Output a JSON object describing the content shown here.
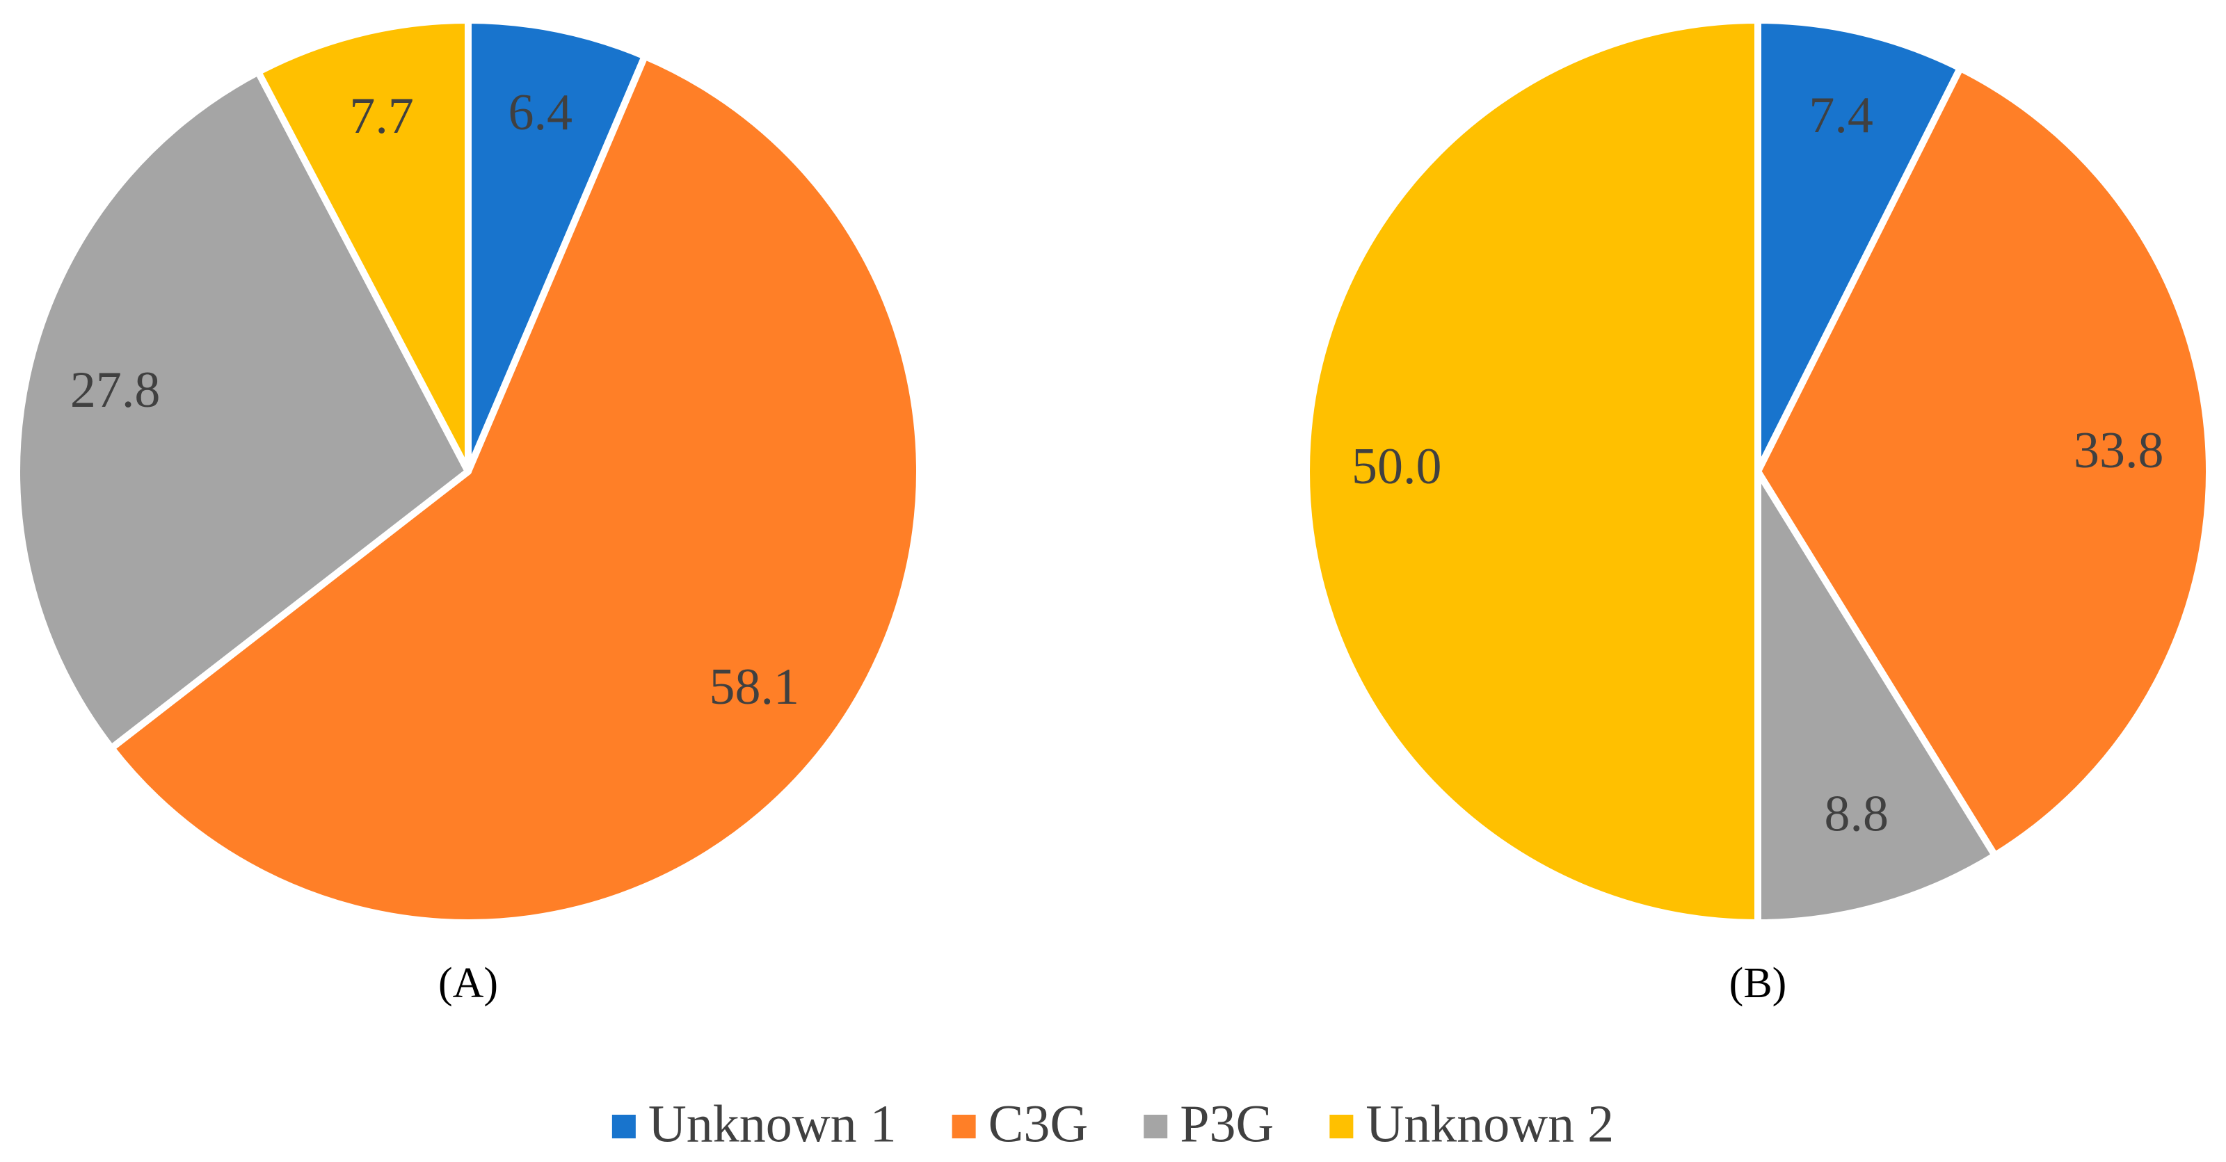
{
  "legend": {
    "items": [
      {
        "name": "Unknown 1",
        "color": "#1874cd"
      },
      {
        "name": "C3G",
        "color": "#ff7f27"
      },
      {
        "name": "P3G",
        "color": "#a5a5a5"
      },
      {
        "name": "Unknown 2",
        "color": "#ffc000"
      }
    ]
  },
  "chart_data": [
    {
      "type": "pie",
      "title": "(A)",
      "values": [
        6.4,
        58.1,
        27.8,
        7.7
      ]
    },
    {
      "type": "pie",
      "title": "(B)",
      "values": [
        7.4,
        33.8,
        8.8,
        50.0
      ],
      "value_labels": [
        "7.4",
        "33.8",
        "8.8",
        "50.0"
      ]
    }
  ]
}
